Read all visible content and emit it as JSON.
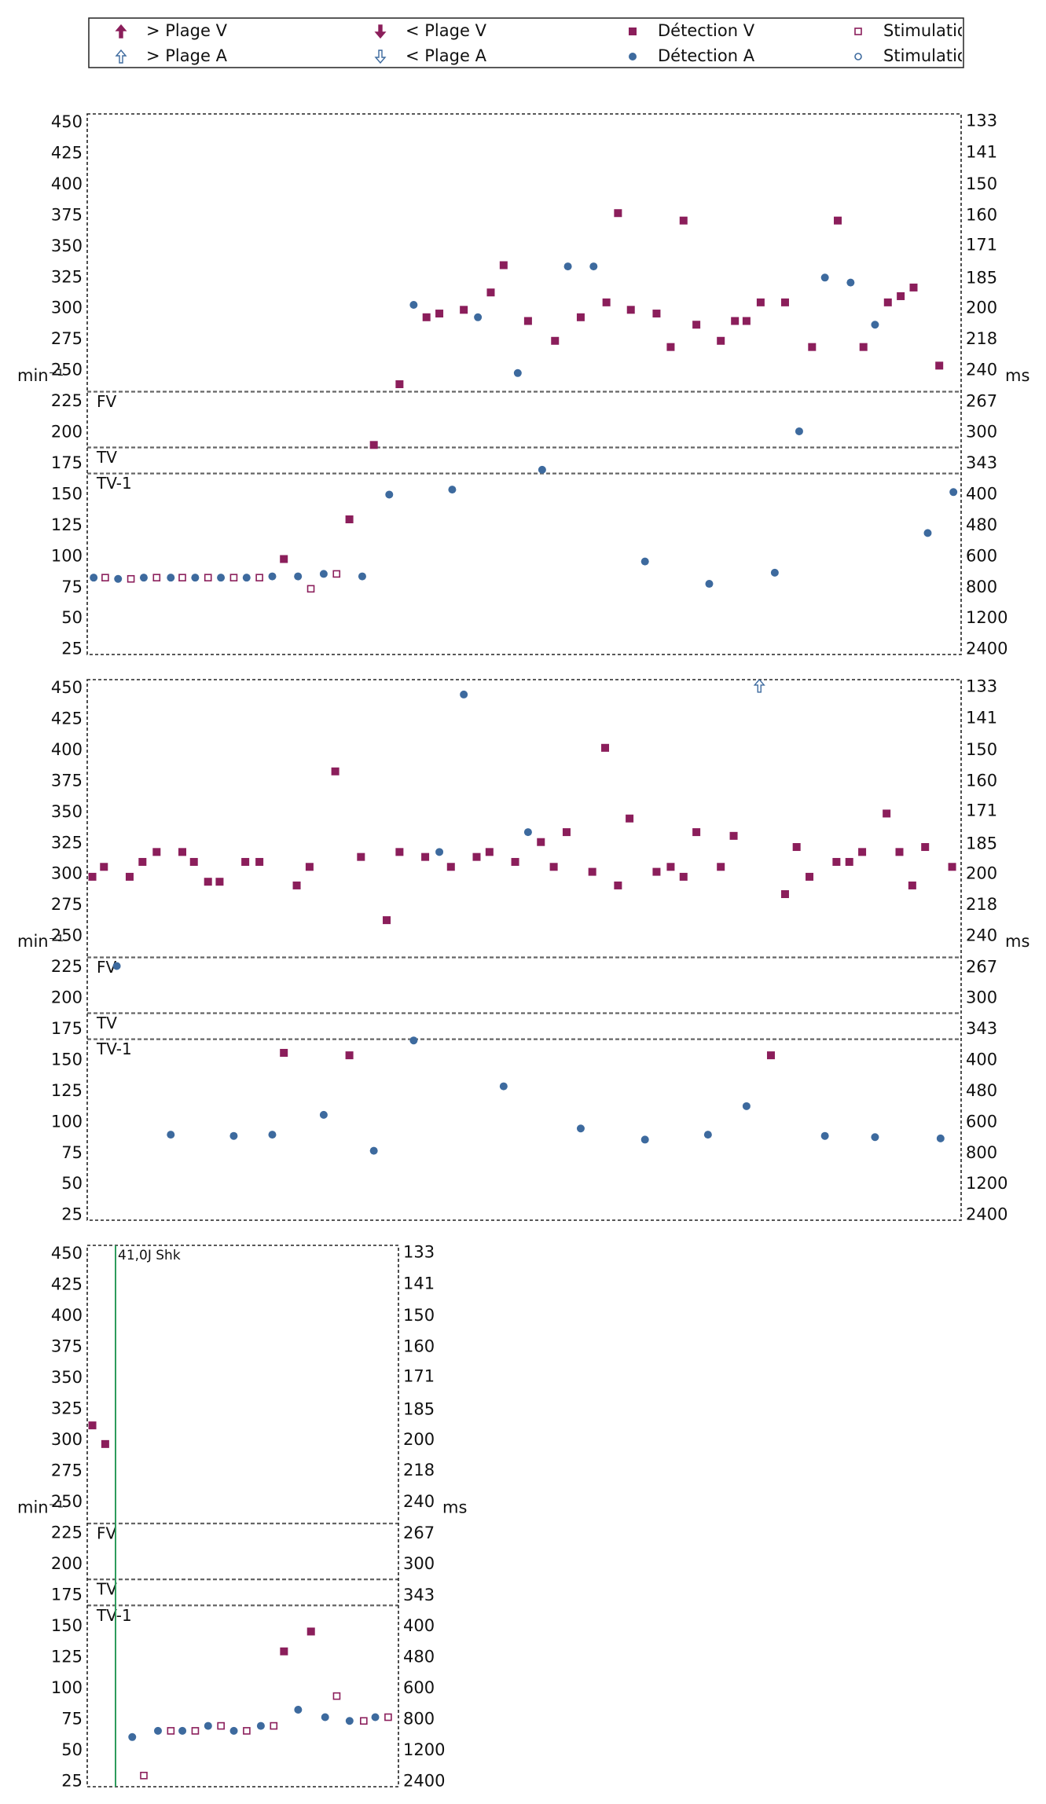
{
  "legend": {
    "entries": [
      {
        "name": "> Plage V",
        "color": "#8b1e5b",
        "marker": "up-filled"
      },
      {
        "name": "< Plage V",
        "color": "#8b1e5b",
        "marker": "down-filled"
      },
      {
        "name": "Détection V",
        "color": "#8b1e5b",
        "marker": "square"
      },
      {
        "name": "Stimulation V",
        "color": "#8b1e5b",
        "marker": "square-open"
      },
      {
        "name": "> Plage A",
        "color": "#3d6a9e",
        "marker": "up-open"
      },
      {
        "name": "< Plage A",
        "color": "#3d6a9e",
        "marker": "down-open"
      },
      {
        "name": "Détection A",
        "color": "#3d6a9e",
        "marker": "circle"
      },
      {
        "name": "Stimulation A",
        "color": "#3d6a9e",
        "marker": "circle-open"
      }
    ]
  },
  "chart_data": [
    {
      "type": "scatter",
      "xlim": [
        0,
        68
      ],
      "ylim": [
        21,
        457
      ],
      "yticks": [
        25,
        50,
        75,
        100,
        125,
        150,
        175,
        200,
        225,
        250,
        275,
        300,
        325,
        350,
        375,
        400,
        425,
        450
      ],
      "y2ticks": [
        2400,
        1200,
        800,
        600,
        480,
        400,
        343,
        300,
        267,
        240,
        218,
        200,
        185,
        171,
        160,
        150,
        141,
        133
      ],
      "y2scale": "reciprocal",
      "ylabel": "min⁻¹",
      "y2label": "ms",
      "zones": [
        {
          "label": "FV",
          "value": 233
        },
        {
          "label": "TV",
          "value": 188
        },
        {
          "label": "TV-1",
          "value": 167
        }
      ],
      "series": [
        {
          "marker": "circle",
          "color": "#3d6a9e",
          "x": [
            0.5,
            2.4,
            4.4,
            6.5,
            8.4,
            10.4,
            12.4,
            14.4,
            16.4,
            18.4,
            21.4,
            23.5,
            25.4,
            28.4,
            30.4,
            33.5,
            35.4,
            37.4,
            39.4,
            43.4,
            48.4,
            53.5,
            55.4,
            57.4,
            59.4,
            61.3,
            65.4,
            67.4
          ],
          "values": [
            83,
            82,
            83,
            83,
            83,
            83,
            83,
            84,
            84,
            86,
            84,
            150,
            303,
            154,
            293,
            248,
            170,
            334,
            334,
            96,
            78,
            87,
            201,
            325,
            321,
            287,
            119,
            152
          ]
        },
        {
          "marker": "square-open",
          "color": "#8b1e5b",
          "x": [
            1.4,
            3.4,
            5.4,
            7.4,
            9.4,
            11.4,
            13.4,
            17.4,
            19.4
          ],
          "values": [
            83,
            82,
            83,
            83,
            83,
            83,
            83,
            74,
            86
          ]
        },
        {
          "marker": "square",
          "color": "#8b1e5b",
          "x": [
            15.3,
            20.4,
            22.3,
            24.3,
            26.4,
            27.4,
            29.3,
            31.4,
            32.4,
            34.3,
            36.4,
            38.4,
            40.4,
            41.3,
            42.3,
            44.3,
            45.4,
            46.4,
            47.4,
            49.3,
            50.4,
            51.3,
            52.4,
            54.3,
            56.4,
            58.4,
            60.4,
            62.3,
            63.3,
            64.3,
            66.3
          ],
          "values": [
            98,
            130,
            190,
            239,
            293,
            296,
            299,
            313,
            335,
            290,
            274,
            293,
            305,
            377,
            299,
            296,
            269,
            371,
            287,
            274,
            290,
            290,
            305,
            305,
            269,
            371,
            269,
            305,
            310,
            317,
            254
          ]
        }
      ]
    },
    {
      "type": "scatter",
      "xlim": [
        0,
        68
      ],
      "ylim": [
        21,
        457
      ],
      "yticks": [
        25,
        50,
        75,
        100,
        125,
        150,
        175,
        200,
        225,
        250,
        275,
        300,
        325,
        350,
        375,
        400,
        425,
        450
      ],
      "y2ticks": [
        2400,
        1200,
        800,
        600,
        480,
        400,
        343,
        300,
        267,
        240,
        218,
        200,
        185,
        171,
        160,
        150,
        141,
        133
      ],
      "y2scale": "reciprocal",
      "ylabel": "min⁻¹",
      "y2label": "ms",
      "zones": [
        {
          "label": "FV",
          "value": 233
        },
        {
          "label": "TV",
          "value": 188
        },
        {
          "label": "TV-1",
          "value": 167
        }
      ],
      "series": [
        {
          "marker": "circle",
          "color": "#3d6a9e",
          "x": [
            2.3,
            6.5,
            11.4,
            14.4,
            18.4,
            22.3,
            25.4,
            27.4,
            29.3,
            32.4,
            34.3,
            38.4,
            43.4,
            48.3,
            51.3,
            57.4,
            61.3,
            66.4
          ],
          "values": [
            226,
            90,
            89,
            90,
            106,
            77,
            166,
            318,
            445,
            129,
            334,
            95,
            86,
            90,
            113,
            89,
            88,
            87
          ]
        },
        {
          "marker": "square",
          "color": "#8b1e5b",
          "x": [
            0.4,
            1.3,
            3.3,
            4.3,
            5.4,
            7.4,
            8.3,
            9.4,
            10.3,
            12.3,
            13.4,
            15.3,
            16.3,
            17.3,
            19.3,
            20.4,
            21.3,
            23.3,
            24.3,
            26.3,
            28.3,
            30.3,
            31.3,
            33.3,
            35.3,
            36.3,
            37.3,
            39.3,
            40.3,
            41.3,
            42.2,
            44.3,
            45.4,
            46.4,
            47.4,
            49.3,
            50.3,
            53.2,
            54.3,
            55.2,
            56.2,
            58.3,
            59.3,
            60.3,
            62.2,
            63.2,
            64.2,
            65.2,
            67.3
          ],
          "values": [
            298,
            306,
            298,
            310,
            318,
            318,
            310,
            294,
            294,
            310,
            310,
            156,
            291,
            306,
            383,
            154,
            314,
            263,
            318,
            314,
            306,
            314,
            318,
            310,
            326,
            306,
            334,
            302,
            402,
            291,
            345,
            302,
            306,
            298,
            334,
            306,
            331,
            154,
            284,
            322,
            298,
            310,
            310,
            318,
            349,
            318,
            291,
            322,
            306
          ]
        },
        {
          "marker": "up-open",
          "color": "#3d6a9e",
          "x": [
            52.3
          ],
          "values": [
            452
          ]
        }
      ]
    },
    {
      "type": "scatter",
      "xlim": [
        0,
        24.2
      ],
      "ylim": [
        21,
        457
      ],
      "yticks": [
        25,
        50,
        75,
        100,
        125,
        150,
        175,
        200,
        225,
        250,
        275,
        300,
        325,
        350,
        375,
        400,
        425,
        450
      ],
      "y2ticks": [
        2400,
        1200,
        800,
        600,
        480,
        400,
        343,
        300,
        267,
        240,
        218,
        200,
        185,
        171,
        160,
        150,
        141,
        133
      ],
      "y2scale": "reciprocal",
      "ylabel": "min⁻¹",
      "y2label": "ms",
      "zones": [
        {
          "label": "FV",
          "value": 233
        },
        {
          "label": "TV",
          "value": 188
        },
        {
          "label": "TV-1",
          "value": 167
        }
      ],
      "annotations": [
        {
          "x": 2.2,
          "label": "41,0J Shk",
          "color": "#2e9b5c"
        }
      ],
      "series": [
        {
          "marker": "square",
          "color": "#8b1e5b",
          "x": [
            0.4,
            1.4,
            15.3,
            17.4
          ],
          "values": [
            312,
            297,
            130,
            146
          ]
        },
        {
          "marker": "circle",
          "color": "#3d6a9e",
          "x": [
            3.5,
            5.5,
            7.4,
            9.4,
            11.4,
            13.5,
            16.4,
            18.5,
            20.4,
            22.4
          ],
          "values": [
            61,
            66,
            66,
            70,
            66,
            70,
            83,
            77,
            74,
            77
          ]
        },
        {
          "marker": "square-open",
          "color": "#8b1e5b",
          "x": [
            4.4,
            6.5,
            8.4,
            10.4,
            12.4,
            14.5,
            19.4,
            21.5,
            23.4
          ],
          "values": [
            30,
            66,
            66,
            70,
            66,
            70,
            94,
            74,
            77
          ]
        }
      ]
    }
  ]
}
